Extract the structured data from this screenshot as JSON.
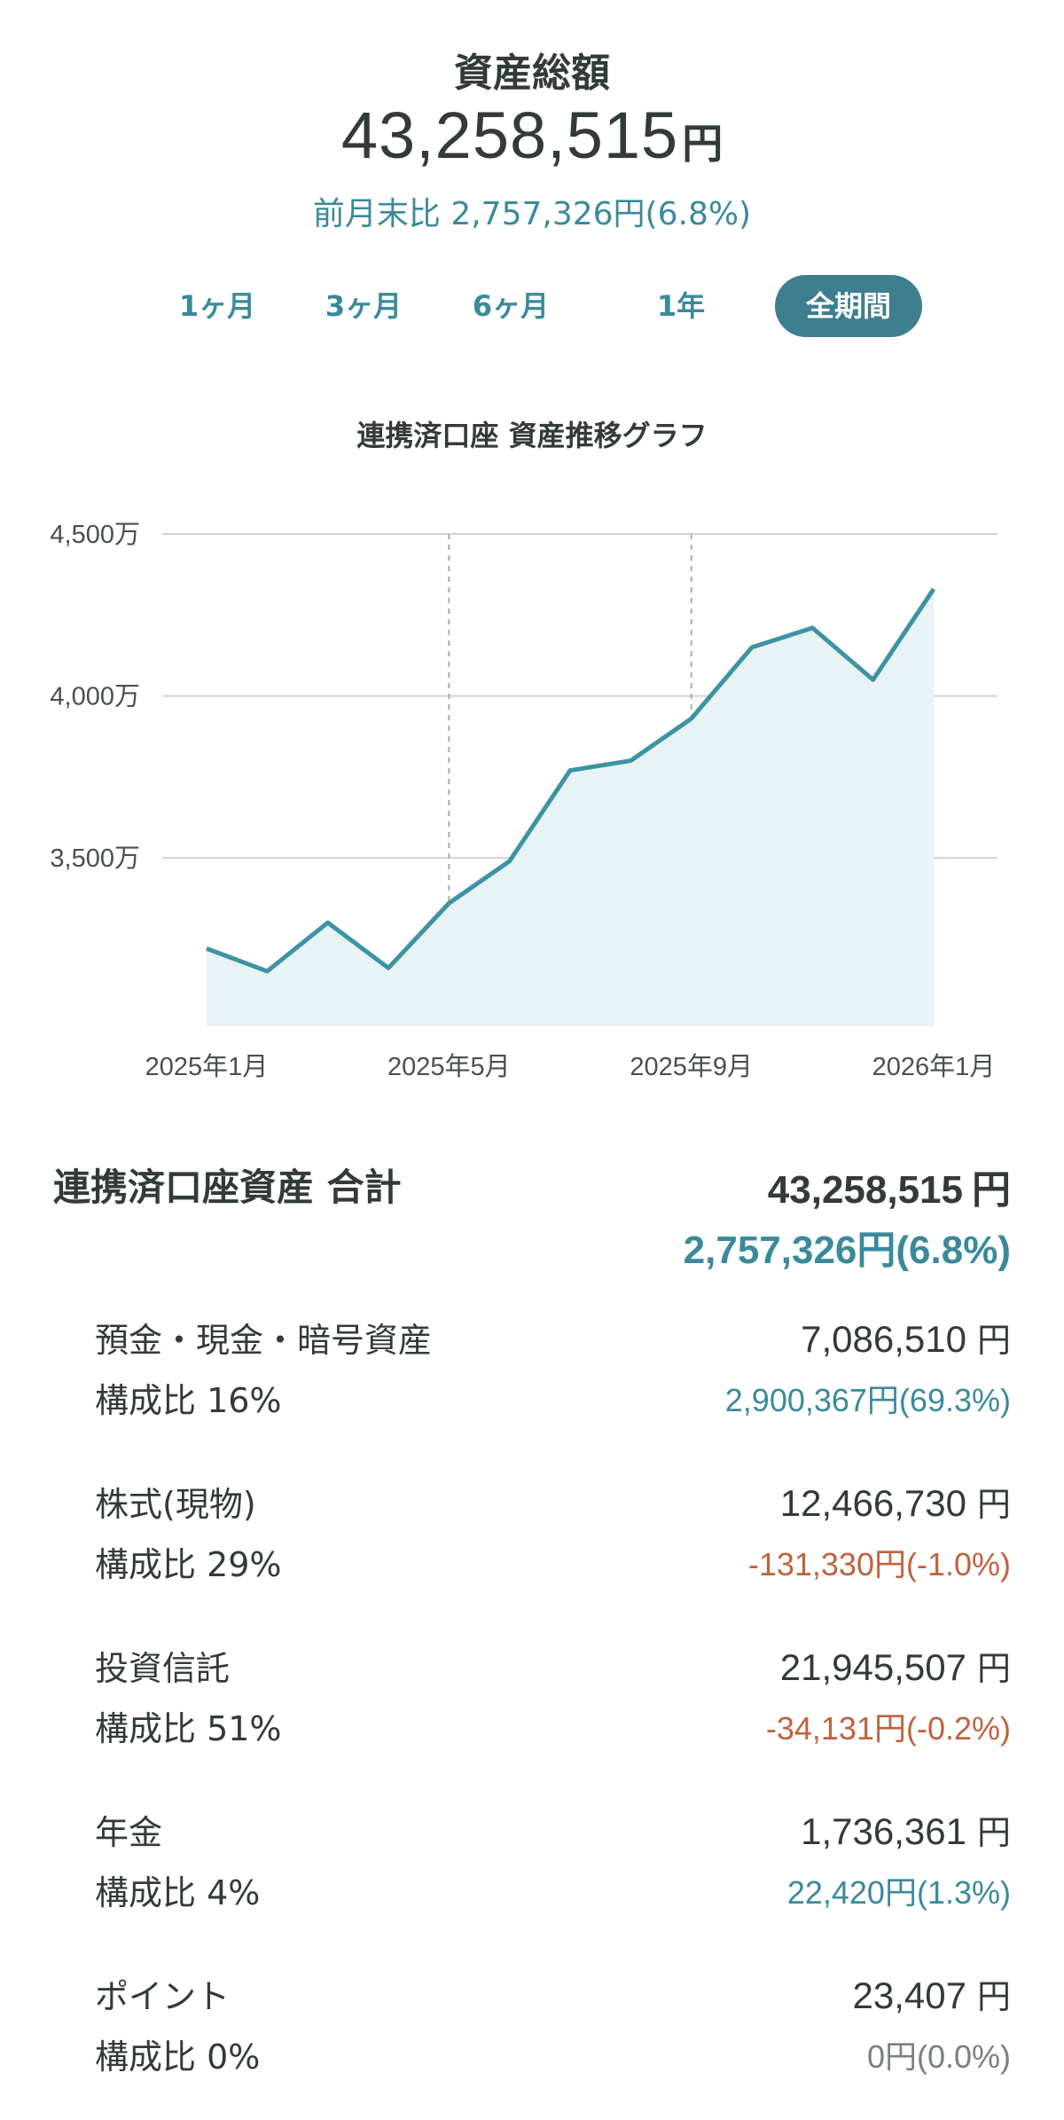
{
  "summary": {
    "label": "資産総額",
    "total_value": "43,258,515",
    "total_unit": "円",
    "change_text": "前月末比 2,757,326円(6.8%)"
  },
  "period_tabs": [
    {
      "label": "1ヶ月",
      "active": false
    },
    {
      "label": "3ヶ月",
      "active": false
    },
    {
      "label": "6ヶ月",
      "active": false
    },
    {
      "label": "1年",
      "active": false
    },
    {
      "label": "全期間",
      "active": true
    }
  ],
  "chart_data": {
    "type": "area",
    "title": "連携済口座 資産推移グラフ",
    "x": [
      "2025-01",
      "2025-02",
      "2025-03",
      "2025-04",
      "2025-05",
      "2025-06",
      "2025-07",
      "2025-08",
      "2025-09",
      "2025-10",
      "2025-11",
      "2025-12",
      "2026-01"
    ],
    "series": [
      {
        "values": [
          3220,
          3150,
          3300,
          3160,
          3360,
          3490,
          3770,
          3800,
          3930,
          4150,
          4210,
          4050,
          4330
        ]
      }
    ],
    "y_unit": "万",
    "ylim": [
      2980,
      4500
    ],
    "yticks": [
      3500,
      4000,
      4500
    ],
    "ytick_labels": [
      "3,500万",
      "4,000万",
      "4,500万"
    ],
    "xtick_labels": [
      "2025年1月",
      "2025年5月",
      "2025年9月",
      "2026年1月"
    ],
    "xtick_positions": [
      "2025-01",
      "2025-05",
      "2025-09",
      "2026-01"
    ],
    "grid": true,
    "colors": {
      "line": "#3e93a3",
      "fill": "#e8f3f6",
      "grid": "#cfd3d4",
      "vline": "#a9adb0"
    }
  },
  "total": {
    "label": "連携済口座資産 合計",
    "value": "43,258,515",
    "unit": "円",
    "change": "2,757,326円(6.8%)"
  },
  "categories": [
    {
      "name": "預金・現金・暗号資産",
      "amount": "7,086,510",
      "unit": "円",
      "ratio": "構成比 16%",
      "change": "2,900,367円(69.3%)",
      "trend": "up"
    },
    {
      "name": "株式(現物)",
      "amount": "12,466,730",
      "unit": "円",
      "ratio": "構成比 29%",
      "change": "-131,330円(-1.0%)",
      "trend": "down"
    },
    {
      "name": "投資信託",
      "amount": "21,945,507",
      "unit": "円",
      "ratio": "構成比 51%",
      "change": "-34,131円(-0.2%)",
      "trend": "down"
    },
    {
      "name": "年金",
      "amount": "1,736,361",
      "unit": "円",
      "ratio": "構成比 4%",
      "change": "22,420円(1.3%)",
      "trend": "up"
    },
    {
      "name": "ポイント",
      "amount": "23,407",
      "unit": "円",
      "ratio": "構成比 0%",
      "change": "0円(0.0%)",
      "trend": "flat"
    }
  ],
  "colors": {
    "up": "#3a8a9a",
    "down": "#c0623e",
    "flat": "#7a7f82",
    "accent": "#3d7e8f"
  }
}
